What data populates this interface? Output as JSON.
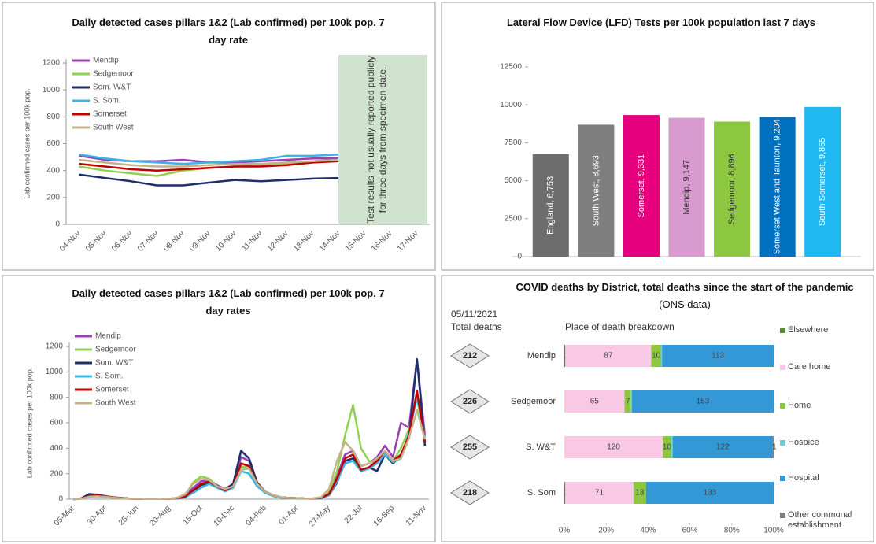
{
  "chart_data": [
    {
      "type": "line",
      "title": "Daily detected cases pillars 1&2 (Lab confirmed) per 100k pop. 7 day rate",
      "y_label": "Lab confirmed cases per 100k pop.",
      "annotation": "Test results not usually reported publicly for three days from specimen date.",
      "categories": [
        "04-Nov",
        "05-Nov",
        "06-Nov",
        "07-Nov",
        "08-Nov",
        "09-Nov",
        "10-Nov",
        "11-Nov",
        "12-Nov",
        "13-Nov",
        "14-Nov",
        "15-Nov",
        "16-Nov",
        "17-Nov"
      ],
      "series": [
        {
          "name": "Mendip",
          "color": "#9b3fb5",
          "values": [
            510,
            480,
            470,
            470,
            480,
            460,
            460,
            470,
            480,
            490,
            490,
            null,
            null,
            null
          ]
        },
        {
          "name": "Sedgemoor",
          "color": "#92d050",
          "values": [
            430,
            400,
            380,
            360,
            400,
            420,
            430,
            440,
            450,
            470,
            480,
            null,
            null,
            null
          ]
        },
        {
          "name": "Som. W&T",
          "color": "#1f2f6b",
          "values": [
            370,
            345,
            320,
            290,
            290,
            310,
            330,
            320,
            330,
            340,
            345,
            null,
            null,
            null
          ]
        },
        {
          "name": "S. Som.",
          "color": "#3cb4e6",
          "values": [
            520,
            490,
            470,
            460,
            450,
            460,
            470,
            480,
            510,
            510,
            520,
            null,
            null,
            null
          ]
        },
        {
          "name": "Somerset",
          "color": "#c00000",
          "values": [
            450,
            430,
            410,
            400,
            410,
            420,
            430,
            430,
            440,
            460,
            470,
            null,
            null,
            null
          ]
        },
        {
          "name": "South West",
          "color": "#c4b28a",
          "values": [
            480,
            460,
            440,
            430,
            430,
            440,
            450,
            450,
            460,
            470,
            480,
            null,
            null,
            null
          ]
        }
      ],
      "ylim": [
        0,
        1200
      ],
      "yticks": [
        0,
        200,
        400,
        600,
        800,
        1000,
        1200
      ]
    },
    {
      "type": "bar",
      "title": "Lateral Flow Device (LFD) Tests per 100k population last 7 days",
      "values": [
        6753,
        8693,
        9331,
        9147,
        8896,
        9204,
        9865
      ],
      "value_labels": [
        "England, 6,753",
        "South West, 8,693",
        "Somerset, 9,331",
        "Mendip, 9,147",
        "Sedgemoor, 8,896",
        "Somerset West and Taunton, 9,204",
        "South Somerset, 9,865"
      ],
      "colors": [
        "#6d6d6d",
        "#7f7f7f",
        "#e6007e",
        "#d99ad0",
        "#8dc63f",
        "#0070c0",
        "#1fb8f0"
      ],
      "ylim": [
        0,
        12500
      ],
      "yticks": [
        0,
        2500,
        5000,
        7500,
        10000,
        12500
      ]
    },
    {
      "type": "line",
      "title": "Daily detected cases pillars 1&2 (Lab confirmed) per 100k pop. 7 day rates",
      "y_label": "Lab confirmed cases per 100k pop.",
      "categories": [
        "05-Mar",
        null,
        null,
        null,
        "30-Apr",
        null,
        null,
        null,
        "25-Jun",
        null,
        null,
        null,
        "20-Aug",
        null,
        null,
        null,
        "15-Oct",
        null,
        null,
        null,
        "10-Dec",
        null,
        null,
        null,
        "04-Feb",
        null,
        null,
        null,
        "01-Apr",
        null,
        null,
        null,
        "27-May",
        null,
        null,
        null,
        "22-Jul",
        null,
        null,
        null,
        "16-Sep",
        null,
        null,
        null,
        "11-Nov"
      ],
      "series": [
        {
          "name": "Mendip",
          "color": "#9b3fb5",
          "values": [
            0,
            5,
            30,
            35,
            25,
            15,
            8,
            5,
            3,
            2,
            2,
            2,
            3,
            10,
            25,
            90,
            140,
            150,
            110,
            80,
            110,
            330,
            300,
            130,
            60,
            30,
            15,
            10,
            8,
            5,
            5,
            12,
            50,
            180,
            350,
            380,
            260,
            280,
            330,
            420,
            330,
            600,
            560,
            1100,
            500
          ]
        },
        {
          "name": "Sedgemoor",
          "color": "#92d050",
          "values": [
            0,
            4,
            20,
            25,
            20,
            12,
            7,
            4,
            2,
            2,
            2,
            2,
            3,
            10,
            30,
            130,
            180,
            160,
            100,
            70,
            90,
            250,
            260,
            110,
            50,
            25,
            12,
            8,
            6,
            4,
            5,
            10,
            60,
            220,
            500,
            740,
            400,
            300,
            280,
            350,
            300,
            400,
            550,
            800,
            450
          ]
        },
        {
          "name": "Som. W&T",
          "color": "#1f2f6b",
          "values": [
            0,
            6,
            40,
            35,
            20,
            15,
            10,
            5,
            3,
            2,
            2,
            2,
            3,
            6,
            15,
            60,
            110,
            130,
            90,
            80,
            120,
            380,
            320,
            130,
            60,
            30,
            15,
            10,
            8,
            5,
            5,
            8,
            30,
            130,
            300,
            320,
            220,
            250,
            220,
            350,
            280,
            340,
            480,
            1100,
            420
          ]
        },
        {
          "name": "S. Som.",
          "color": "#3cb4e6",
          "values": [
            0,
            5,
            20,
            25,
            18,
            12,
            7,
            4,
            3,
            2,
            2,
            2,
            3,
            6,
            15,
            50,
            90,
            120,
            90,
            60,
            90,
            220,
            200,
            100,
            50,
            25,
            12,
            8,
            6,
            4,
            5,
            8,
            30,
            140,
            280,
            300,
            220,
            240,
            280,
            350,
            290,
            320,
            520,
            800,
            480
          ]
        },
        {
          "name": "Somerset",
          "color": "#c00000",
          "values": [
            0,
            5,
            25,
            30,
            20,
            15,
            8,
            5,
            3,
            2,
            2,
            2,
            3,
            8,
            20,
            70,
            120,
            140,
            100,
            70,
            100,
            280,
            260,
            120,
            60,
            30,
            15,
            10,
            8,
            5,
            5,
            10,
            40,
            160,
            320,
            350,
            230,
            250,
            300,
            380,
            300,
            350,
            500,
            850,
            450
          ]
        },
        {
          "name": "South West",
          "color": "#c4b28a",
          "values": [
            0,
            4,
            20,
            22,
            18,
            12,
            7,
            4,
            3,
            2,
            2,
            2,
            3,
            10,
            40,
            120,
            160,
            150,
            100,
            80,
            100,
            230,
            240,
            120,
            60,
            30,
            15,
            10,
            8,
            5,
            6,
            15,
            80,
            300,
            450,
            380,
            260,
            280,
            320,
            380,
            300,
            320,
            480,
            700,
            470
          ]
        }
      ],
      "ylim": [
        0,
        1200
      ],
      "yticks": [
        0,
        200,
        400,
        600,
        800,
        1000,
        1200
      ]
    },
    {
      "type": "hbar",
      "title": "COVID deaths by District, total deaths since the start of the pandemic",
      "subtitle": "(ONS data)",
      "date": "05/11/2021",
      "totals_label": "Total deaths",
      "breakdown_label": "Place of death breakdown",
      "categories": [
        "Mendip",
        "Sedgemoor",
        "S. W&T",
        "S. Som"
      ],
      "totals": [
        212,
        226,
        255,
        218
      ],
      "series": [
        {
          "name": "Elsewhere",
          "color": "#5e8a3c",
          "values": [
            1,
            0,
            0,
            1
          ],
          "value_labels": [
            "1",
            null,
            null,
            "1"
          ]
        },
        {
          "name": "Care home",
          "color": "#f8c8e4",
          "values": [
            87,
            65,
            120,
            71
          ],
          "value_labels": [
            "87",
            "65",
            "120",
            "71"
          ]
        },
        {
          "name": "Home",
          "color": "#8dc63f",
          "values": [
            10,
            7,
            10,
            13
          ],
          "value_labels": [
            "10",
            "7",
            "10",
            "13"
          ]
        },
        {
          "name": "Hospice",
          "color": "#5cd6d6",
          "values": [
            1,
            1,
            2,
            0
          ],
          "value_labels": [
            null,
            null,
            null,
            null
          ]
        },
        {
          "name": "Hospital",
          "color": "#3399d6",
          "values": [
            113,
            153,
            122,
            133
          ],
          "value_labels": [
            "113",
            "153",
            "122",
            "133"
          ]
        },
        {
          "name": "Other communal establishment",
          "color": "#7f7f7f",
          "values": [
            0,
            0,
            1,
            0
          ],
          "value_labels": [
            null,
            null,
            "1",
            null
          ]
        }
      ],
      "xlim": [
        0,
        100
      ],
      "xticks": [
        {
          "value": 0,
          "label": "0%"
        },
        {
          "value": 20,
          "label": "20%"
        },
        {
          "value": 40,
          "label": "40%"
        },
        {
          "value": 60,
          "label": "60%"
        },
        {
          "value": 80,
          "label": "80%"
        },
        {
          "value": 100,
          "label": "100%"
        }
      ]
    }
  ]
}
